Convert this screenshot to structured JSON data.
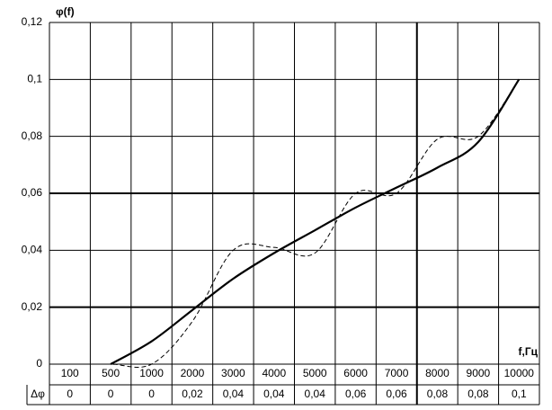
{
  "chart_data": {
    "type": "line",
    "y_label": "φ(f)",
    "x_label": "f,Гц",
    "categories": [
      "100",
      "500",
      "1000",
      "2000",
      "3000",
      "4000",
      "5000",
      "6000",
      "7000",
      "8000",
      "9000",
      "10000"
    ],
    "series": [
      {
        "color": "#000000",
        "style": "solid",
        "values": [
          null,
          0,
          0.008,
          0.019,
          0.03,
          0.039,
          0.047,
          0.055,
          0.062,
          0.069,
          0.078,
          0.1
        ]
      },
      {
        "color": "#000000",
        "style": "dashed",
        "values": [
          0,
          0,
          0,
          0.015,
          0.04,
          0.041,
          0.039,
          0.06,
          0.06,
          0.079,
          0.08,
          0.1
        ]
      }
    ],
    "ylim": [
      0,
      0.12
    ],
    "yticks": [
      0,
      {
        "value": 0.02,
        "label": "0,02"
      },
      {
        "value": 0.04,
        "label": "0,04"
      },
      {
        "value": 0.06,
        "label": "0,06"
      },
      {
        "value": 0.08,
        "label": "0,08"
      },
      {
        "value": 0.1,
        "label": "0,1"
      },
      {
        "value": 0.12,
        "label": "0,12"
      }
    ],
    "grid": true,
    "table_row_label": "Δφ",
    "table_values": [
      "0",
      "0",
      "0",
      "0,02",
      "0,04",
      "0,04",
      "0,04",
      "0,06",
      "0,06",
      "0,08",
      "0,08",
      "0,1"
    ]
  }
}
